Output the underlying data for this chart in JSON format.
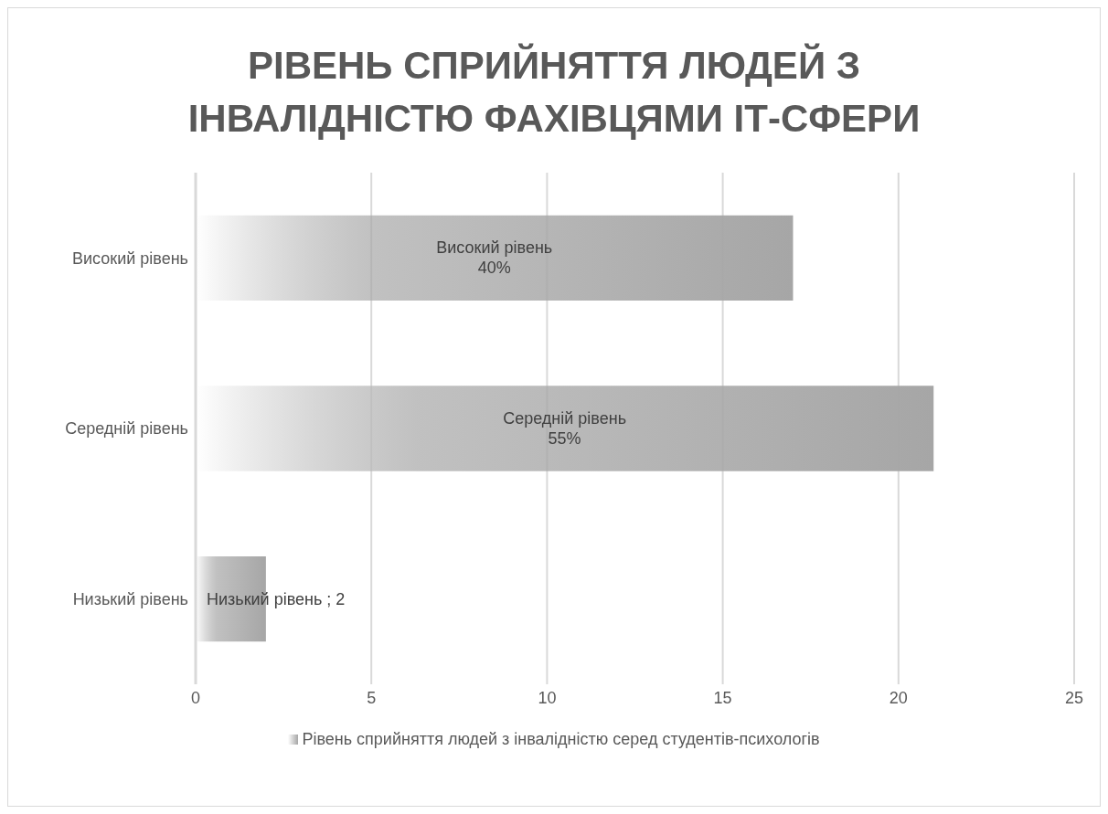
{
  "chart_data": {
    "type": "bar",
    "orientation": "horizontal",
    "title": "РІВЕНЬ СПРИЙНЯТТЯ ЛЮДЕЙ З ІНВАЛІДНІСТЮ ФАХІВЦЯМИ ІТ-СФЕРИ",
    "categories": [
      "Високий рівень",
      "Середній рівень",
      "Низький рівень"
    ],
    "series": [
      {
        "name": "Рівень сприйняття людей з інвалідністю серед студентів-психологів",
        "color": "#a6a6a6",
        "values": [
          17,
          21,
          2
        ],
        "value_labels": [
          "Високий рівень\n40%",
          "Середній рівень\n55%",
          "Низький рівень ; 2"
        ]
      }
    ],
    "xlim": [
      0,
      25
    ],
    "xticks": [
      0,
      5,
      10,
      15,
      20,
      25
    ],
    "grid": "x",
    "legend": "bottom"
  }
}
